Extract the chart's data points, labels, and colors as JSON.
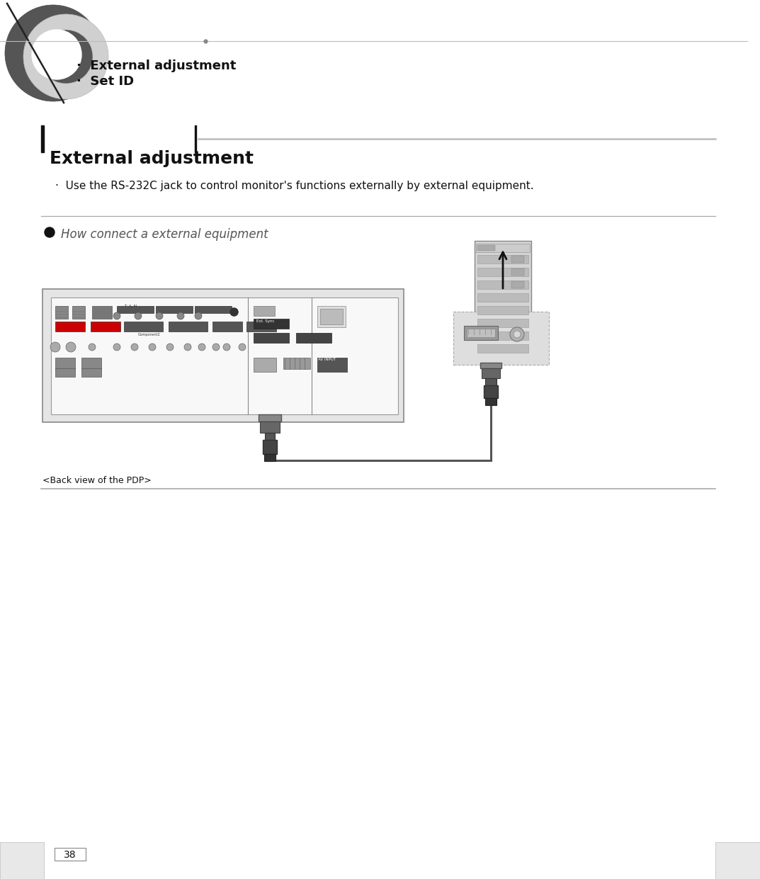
{
  "page_number": "38",
  "bg_color": "#ffffff",
  "header_bullet1": "External adjustment",
  "header_bullet2": "Set ID",
  "section_title": "External adjustment",
  "bullet_text": "Use the RS-232C jack to control monitor's functions externally by external equipment.",
  "subsection_title": "How connect a external equipment",
  "back_view_label": "<Back view of the PDP>",
  "dark_color": "#111111",
  "light_gray": "#cccccc",
  "medium_gray": "#999999",
  "panel_bg": "#e8e8e8",
  "panel_inner": "#f0f0f0",
  "comp_color": "#c8c8c8",
  "adapter_bg": "#d8d8d8",
  "header_fontsize": 13,
  "section_fontsize": 18,
  "bullet_fontsize": 11,
  "sub_fontsize": 12
}
